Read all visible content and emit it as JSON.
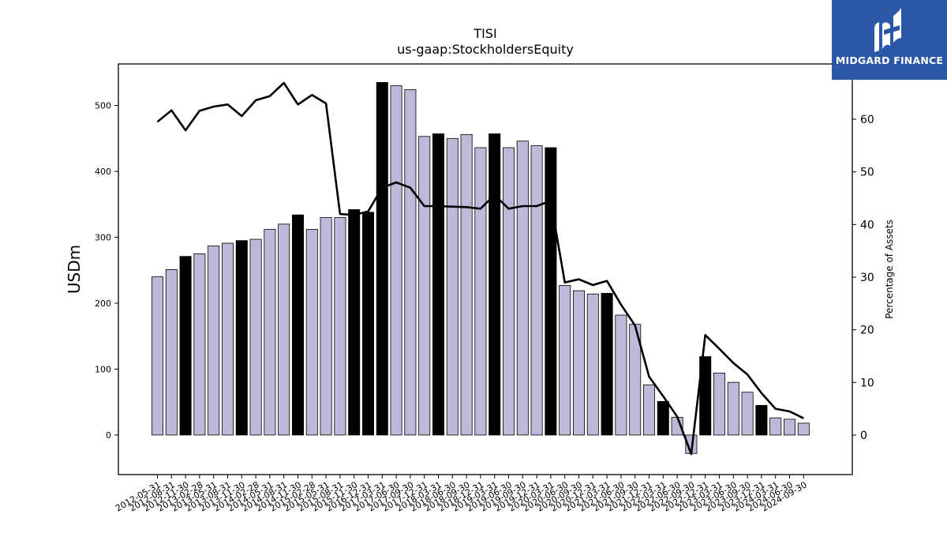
{
  "chart_data": {
    "type": "bar",
    "title": "TISI",
    "subtitle": "us-gaap:StockholdersEquity",
    "ylabel": "USDm",
    "y2label": "Percentage of Assets",
    "ylim": [
      -60,
      563
    ],
    "y2lim": [
      -7.5,
      70.5
    ],
    "yticks": [
      0,
      100,
      200,
      300,
      400,
      500
    ],
    "y2ticks": [
      0,
      10,
      20,
      30,
      40,
      50,
      60
    ],
    "bar_fill": "#bcb9d9",
    "bar_highlight_fill": "#000000",
    "line_color": "#000000",
    "categories": [
      "2012-05-31",
      "2012-08-31",
      "2012-11-30",
      "2013-02-28",
      "2013-05-31",
      "2013-08-31",
      "2013-11-30",
      "2014-02-28",
      "2014-05-31",
      "2014-08-31",
      "2014-11-30",
      "2015-02-28",
      "2015-05-31",
      "2015-08-31",
      "2015-11-30",
      "2016-12-31",
      "2017-03-31",
      "2017-06-30",
      "2017-09-30",
      "2017-12-31",
      "2018-03-31",
      "2018-06-30",
      "2018-09-30",
      "2018-12-31",
      "2019-03-31",
      "2019-06-30",
      "2019-09-30",
      "2019-12-31",
      "2020-03-31",
      "2020-06-30",
      "2020-09-30",
      "2020-12-31",
      "2021-03-31",
      "2021-06-30",
      "2021-09-30",
      "2021-12-31",
      "2022-03-31",
      "2022-06-30",
      "2022-09-30",
      "2022-12-31",
      "2023-03-31",
      "2023-06-30",
      "2023-09-30",
      "2023-12-31",
      "2024-03-31",
      "2024-06-30",
      "2024-09-30"
    ],
    "series": [
      {
        "name": "USDm",
        "values": [
          240,
          251,
          271,
          275,
          287,
          291,
          295,
          297,
          312,
          320,
          334,
          312,
          330,
          330,
          342,
          338,
          535,
          530,
          524,
          453,
          457,
          450,
          456,
          436,
          457,
          436,
          446,
          439,
          436,
          227,
          219,
          214,
          215,
          182,
          168,
          76,
          51,
          27,
          -28,
          119,
          94,
          80,
          65,
          45,
          26,
          24,
          18
        ],
        "highlight": [
          false,
          false,
          true,
          false,
          false,
          false,
          true,
          false,
          false,
          false,
          true,
          false,
          false,
          false,
          true,
          true,
          true,
          false,
          false,
          false,
          true,
          false,
          false,
          false,
          true,
          false,
          false,
          false,
          true,
          false,
          false,
          false,
          true,
          false,
          false,
          false,
          true,
          false,
          false,
          true,
          false,
          false,
          false,
          true,
          false,
          false,
          false
        ]
      },
      {
        "name": "Percentage of Assets",
        "values": [
          59.5,
          61.7,
          57.9,
          61.6,
          62.4,
          62.8,
          60.6,
          63.6,
          64.4,
          66.9,
          62.8,
          64.6,
          63.0,
          42.0,
          41.8,
          42.5,
          47.0,
          48.0,
          47.0,
          43.5,
          43.5,
          43.4,
          43.3,
          43.0,
          45.6,
          43.0,
          43.5,
          43.5,
          44.5,
          29.0,
          29.6,
          28.5,
          29.3,
          24.8,
          20.8,
          11.1,
          7.4,
          3.5,
          -3.6,
          19.0,
          16.4,
          13.7,
          11.5,
          8.0,
          5.0,
          4.5,
          3.2
        ]
      }
    ],
    "grid": false,
    "legend": "none"
  },
  "logo": {
    "text": "MIDGARD FINANCE",
    "icon": "midgard-logo-mark",
    "bg": "#2b57a8"
  }
}
